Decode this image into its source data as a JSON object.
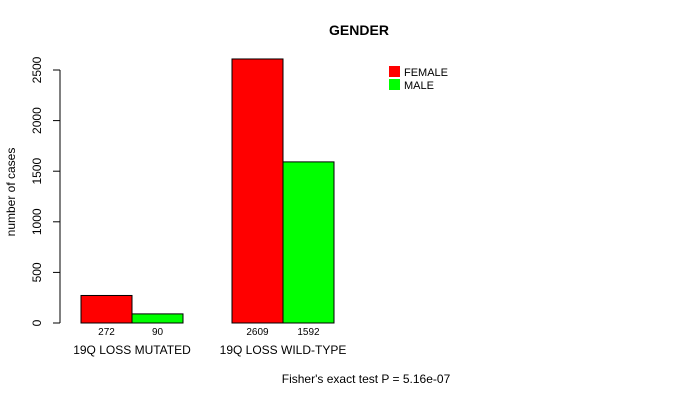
{
  "chart_data": {
    "type": "bar",
    "title": "GENDER",
    "xlabel": "",
    "ylabel": "number of cases",
    "ylim": [
      0,
      2500
    ],
    "yticks": [
      0,
      500,
      1000,
      1500,
      2000,
      2500
    ],
    "categories": [
      "19Q LOSS MUTATED",
      "19Q LOSS WILD-TYPE"
    ],
    "series": [
      {
        "name": "FEMALE",
        "color": "#ff0000",
        "values": [
          272,
          2609
        ]
      },
      {
        "name": "MALE",
        "color": "#00ff00",
        "values": [
          90,
          1592
        ]
      }
    ],
    "data_labels": [
      [
        "272",
        "90"
      ],
      [
        "2609",
        "1592"
      ]
    ],
    "legend_position": "top-right",
    "footnote": "Fisher's exact test P = 5.16e-07"
  }
}
